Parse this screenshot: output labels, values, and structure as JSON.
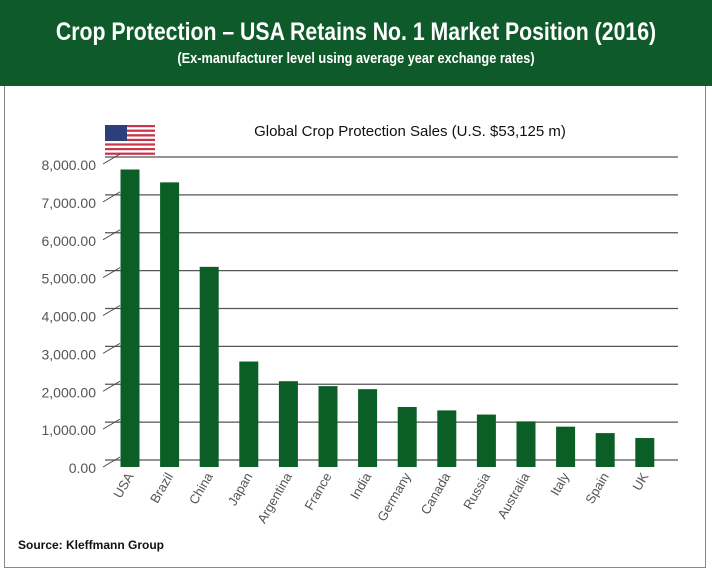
{
  "header": {
    "title": "Crop Protection – USA Retains No. 1 Market Position (2016)",
    "subtitle": "(Ex-manufacturer level using average year exchange rates)"
  },
  "source": "Source: Kleffmann Group",
  "colors": {
    "header": "#0f5a2a",
    "bar": "#0b5e25",
    "grid": "#444444"
  },
  "chart_data": {
    "type": "bar",
    "title": "Global Crop Protection Sales (U.S. $53,125 m)",
    "icon": "usa-flag-icon",
    "categories": [
      "USA",
      "Brazil",
      "China",
      "Japan",
      "Argentina",
      "France",
      "India",
      "Germany",
      "Canada",
      "Russia",
      "Australia",
      "Italy",
      "Spain",
      "UK"
    ],
    "values": [
      7670,
      7330,
      5100,
      2600,
      2080,
      1950,
      1870,
      1400,
      1310,
      1200,
      1020,
      880,
      710,
      580
    ],
    "yticks": [
      "0.00",
      "1,000.00",
      "2,000.00",
      "3,000.00",
      "4,000.00",
      "5,000.00",
      "6,000.00",
      "7,000.00",
      "8,000.00"
    ],
    "ylim": [
      0,
      8000
    ],
    "grid": true,
    "xlabel": "",
    "ylabel": ""
  }
}
